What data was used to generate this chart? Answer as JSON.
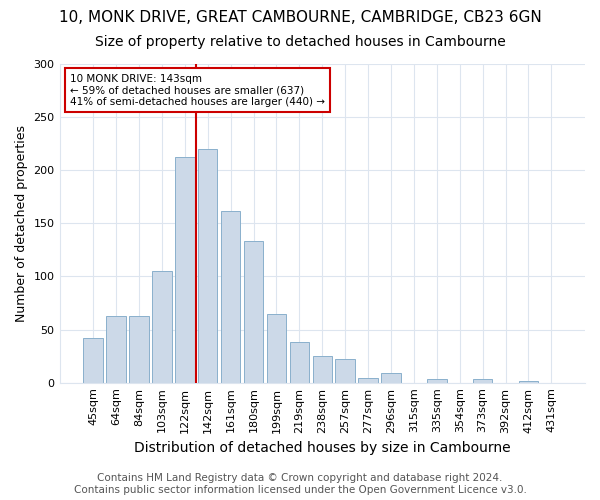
{
  "title": "10, MONK DRIVE, GREAT CAMBOURNE, CAMBRIDGE, CB23 6GN",
  "subtitle": "Size of property relative to detached houses in Cambourne",
  "xlabel": "Distribution of detached houses by size in Cambourne",
  "ylabel": "Number of detached properties",
  "categories": [
    "45sqm",
    "64sqm",
    "84sqm",
    "103sqm",
    "122sqm",
    "142sqm",
    "161sqm",
    "180sqm",
    "199sqm",
    "219sqm",
    "238sqm",
    "257sqm",
    "277sqm",
    "296sqm",
    "315sqm",
    "335sqm",
    "354sqm",
    "373sqm",
    "392sqm",
    "412sqm",
    "431sqm"
  ],
  "values": [
    42,
    63,
    63,
    105,
    212,
    220,
    162,
    133,
    65,
    38,
    25,
    22,
    4,
    9,
    0,
    3,
    0,
    3,
    0,
    2,
    0
  ],
  "bar_color": "#ccd9e8",
  "bar_edge_color": "#8ab0cc",
  "vline_x": 4.5,
  "vline_color": "#cc0000",
  "annotation_text": "10 MONK DRIVE: 143sqm\n← 59% of detached houses are smaller (637)\n41% of semi-detached houses are larger (440) →",
  "annotation_box_color": "#ffffff",
  "annotation_box_edge": "#cc0000",
  "ylim": [
    0,
    300
  ],
  "yticks": [
    0,
    50,
    100,
    150,
    200,
    250,
    300
  ],
  "footer": "Contains HM Land Registry data © Crown copyright and database right 2024.\nContains public sector information licensed under the Open Government Licence v3.0.",
  "bg_color": "#ffffff",
  "plot_bg_color": "#ffffff",
  "title_fontsize": 11,
  "subtitle_fontsize": 10,
  "xlabel_fontsize": 10,
  "ylabel_fontsize": 9,
  "tick_fontsize": 8,
  "footer_fontsize": 7.5,
  "grid_color": "#dde5ef"
}
